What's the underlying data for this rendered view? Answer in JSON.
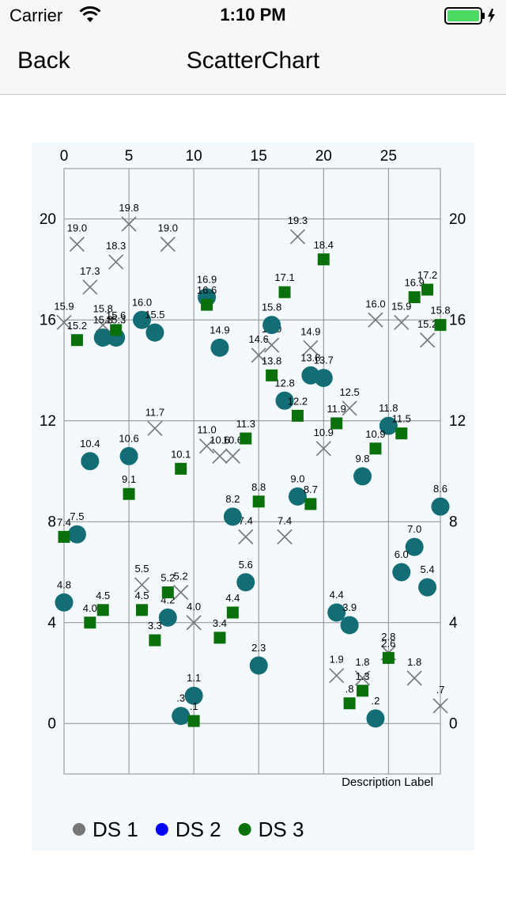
{
  "status_bar": {
    "carrier": "Carrier",
    "time": "1:10 PM",
    "battery_color": "#4cd964"
  },
  "nav": {
    "back_label": "Back",
    "title": "ScatterChart"
  },
  "chart_data": {
    "type": "scatter",
    "description": "Description Label",
    "xlim": [
      0,
      29
    ],
    "ylim": [
      -2,
      22
    ],
    "x_ticks": [
      "0",
      "5",
      "10",
      "15",
      "20",
      "25"
    ],
    "y_ticks": [
      "0",
      "4",
      "8",
      "12",
      "16",
      "20"
    ],
    "grid": true,
    "background": "#f3f9fd",
    "legend_position": "bottom-left",
    "series": [
      {
        "name": "DS 1",
        "marker": "x",
        "color": "#777777",
        "legend_color": "#777777",
        "points": [
          {
            "x": 1,
            "y": 19.0,
            "label": "19.0"
          },
          {
            "x": 2,
            "y": 17.3,
            "label": "17.3"
          },
          {
            "x": 4,
            "y": 18.3,
            "label": "18.3"
          },
          {
            "x": 5,
            "y": 19.8,
            "label": "19.8"
          },
          {
            "x": 8,
            "y": 19.0,
            "label": "19.0"
          },
          {
            "x": 18,
            "y": 19.3,
            "label": "19.3"
          },
          {
            "x": 0,
            "y": 15.9,
            "label": "15.9"
          },
          {
            "x": 3,
            "y": 15.8,
            "label": "15.8"
          },
          {
            "x": 7,
            "y": 11.7,
            "label": "11.7"
          },
          {
            "x": 11,
            "y": 11.0,
            "label": "11.0"
          },
          {
            "x": 12,
            "y": 10.6,
            "label": "10.6"
          },
          {
            "x": 13,
            "y": 10.6,
            "label": "10.6"
          },
          {
            "x": 15,
            "y": 14.6,
            "label": "14.6"
          },
          {
            "x": 16,
            "y": 15.0,
            "label": "15.0"
          },
          {
            "x": 19,
            "y": 14.9,
            "label": "14.9"
          },
          {
            "x": 20,
            "y": 10.9,
            "label": "10.9"
          },
          {
            "x": 22,
            "y": 12.5,
            "label": "12.5"
          },
          {
            "x": 24,
            "y": 16.0,
            "label": "16.0"
          },
          {
            "x": 26,
            "y": 15.9,
            "label": "15.9"
          },
          {
            "x": 28,
            "y": 15.2,
            "label": "15.2"
          },
          {
            "x": 14,
            "y": 7.4,
            "label": "7.4"
          },
          {
            "x": 17,
            "y": 7.4,
            "label": "7.4"
          },
          {
            "x": 6,
            "y": 5.5,
            "label": "5.5"
          },
          {
            "x": 9,
            "y": 5.2,
            "label": "5.2"
          },
          {
            "x": 10,
            "y": 4.0,
            "label": "4.0"
          },
          {
            "x": 21,
            "y": 1.9,
            "label": "1.9"
          },
          {
            "x": 23,
            "y": 1.8,
            "label": "1.8"
          },
          {
            "x": 25,
            "y": 2.8,
            "label": "2.8"
          },
          {
            "x": 27,
            "y": 1.8,
            "label": "1.8"
          },
          {
            "x": 29,
            "y": 0.7,
            "label": ".7"
          }
        ]
      },
      {
        "name": "DS 2",
        "marker": "circle",
        "color": "#136d75",
        "legend_color": "#0000ff",
        "points": [
          {
            "x": 3,
            "y": 15.3,
            "label": "15.3"
          },
          {
            "x": 4,
            "y": 15.3,
            "label": "15.3"
          },
          {
            "x": 6,
            "y": 16.0,
            "label": "16.0"
          },
          {
            "x": 7,
            "y": 15.5,
            "label": "15.5"
          },
          {
            "x": 11,
            "y": 16.9,
            "label": "16.9"
          },
          {
            "x": 12,
            "y": 14.9,
            "label": "14.9"
          },
          {
            "x": 16,
            "y": 15.8,
            "label": "15.8"
          },
          {
            "x": 17,
            "y": 12.8,
            "label": "12.8"
          },
          {
            "x": 19,
            "y": 13.8,
            "label": "13.8"
          },
          {
            "x": 20,
            "y": 13.7,
            "label": "13.7"
          },
          {
            "x": 25,
            "y": 11.8,
            "label": "11.8"
          },
          {
            "x": 2,
            "y": 10.4,
            "label": "10.4"
          },
          {
            "x": 5,
            "y": 10.6,
            "label": "10.6"
          },
          {
            "x": 23,
            "y": 9.8,
            "label": "9.8"
          },
          {
            "x": 18,
            "y": 9.0,
            "label": "9.0"
          },
          {
            "x": 13,
            "y": 8.2,
            "label": "8.2"
          },
          {
            "x": 29,
            "y": 8.6,
            "label": "8.6"
          },
          {
            "x": 1,
            "y": 7.5,
            "label": "7.5"
          },
          {
            "x": 27,
            "y": 7.0,
            "label": "7.0"
          },
          {
            "x": 26,
            "y": 6.0,
            "label": "6.0"
          },
          {
            "x": 14,
            "y": 5.6,
            "label": "5.6"
          },
          {
            "x": 28,
            "y": 5.4,
            "label": "5.4"
          },
          {
            "x": 0,
            "y": 4.8,
            "label": "4.8"
          },
          {
            "x": 8,
            "y": 4.2,
            "label": "4.2"
          },
          {
            "x": 21,
            "y": 4.4,
            "label": "4.4"
          },
          {
            "x": 22,
            "y": 3.9,
            "label": "3.9"
          },
          {
            "x": 15,
            "y": 2.3,
            "label": "2.3"
          },
          {
            "x": 10,
            "y": 1.1,
            "label": "1.1"
          },
          {
            "x": 9,
            "y": 0.3,
            "label": ".3"
          },
          {
            "x": 24,
            "y": 0.2,
            "label": ".2"
          }
        ]
      },
      {
        "name": "DS 3",
        "marker": "square",
        "color": "#0a700a",
        "legend_color": "#0a700a",
        "points": [
          {
            "x": 1,
            "y": 15.2,
            "label": "15.2"
          },
          {
            "x": 4,
            "y": 15.6,
            "label": "15.6"
          },
          {
            "x": 11,
            "y": 16.6,
            "label": "16.6"
          },
          {
            "x": 17,
            "y": 17.1,
            "label": "17.1"
          },
          {
            "x": 20,
            "y": 18.4,
            "label": "18.4"
          },
          {
            "x": 27,
            "y": 16.9,
            "label": "16.9"
          },
          {
            "x": 28,
            "y": 17.2,
            "label": "17.2"
          },
          {
            "x": 29,
            "y": 15.8,
            "label": "15.8"
          },
          {
            "x": 16,
            "y": 13.8,
            "label": "13.8"
          },
          {
            "x": 18,
            "y": 12.2,
            "label": "12.2"
          },
          {
            "x": 21,
            "y": 11.9,
            "label": "11.9"
          },
          {
            "x": 14,
            "y": 11.3,
            "label": "11.3"
          },
          {
            "x": 26,
            "y": 11.5,
            "label": "11.5"
          },
          {
            "x": 24,
            "y": 10.9,
            "label": "10.9"
          },
          {
            "x": 9,
            "y": 10.1,
            "label": "10.1"
          },
          {
            "x": 5,
            "y": 9.1,
            "label": "9.1"
          },
          {
            "x": 15,
            "y": 8.8,
            "label": "8.8"
          },
          {
            "x": 19,
            "y": 8.7,
            "label": "8.7"
          },
          {
            "x": 0,
            "y": 7.4,
            "label": "7.4"
          },
          {
            "x": 8,
            "y": 5.2,
            "label": "5.2"
          },
          {
            "x": 3,
            "y": 4.5,
            "label": "4.5"
          },
          {
            "x": 6,
            "y": 4.5,
            "label": "4.5"
          },
          {
            "x": 2,
            "y": 4.0,
            "label": "4.0"
          },
          {
            "x": 13,
            "y": 4.4,
            "label": "4.4"
          },
          {
            "x": 7,
            "y": 3.3,
            "label": "3.3"
          },
          {
            "x": 12,
            "y": 3.4,
            "label": "3.4"
          },
          {
            "x": 25,
            "y": 2.6,
            "label": "2.6"
          },
          {
            "x": 23,
            "y": 1.3,
            "label": "1.3"
          },
          {
            "x": 22,
            "y": 0.8,
            "label": ".8"
          },
          {
            "x": 10,
            "y": 0.1,
            "label": ".1"
          }
        ]
      }
    ]
  }
}
